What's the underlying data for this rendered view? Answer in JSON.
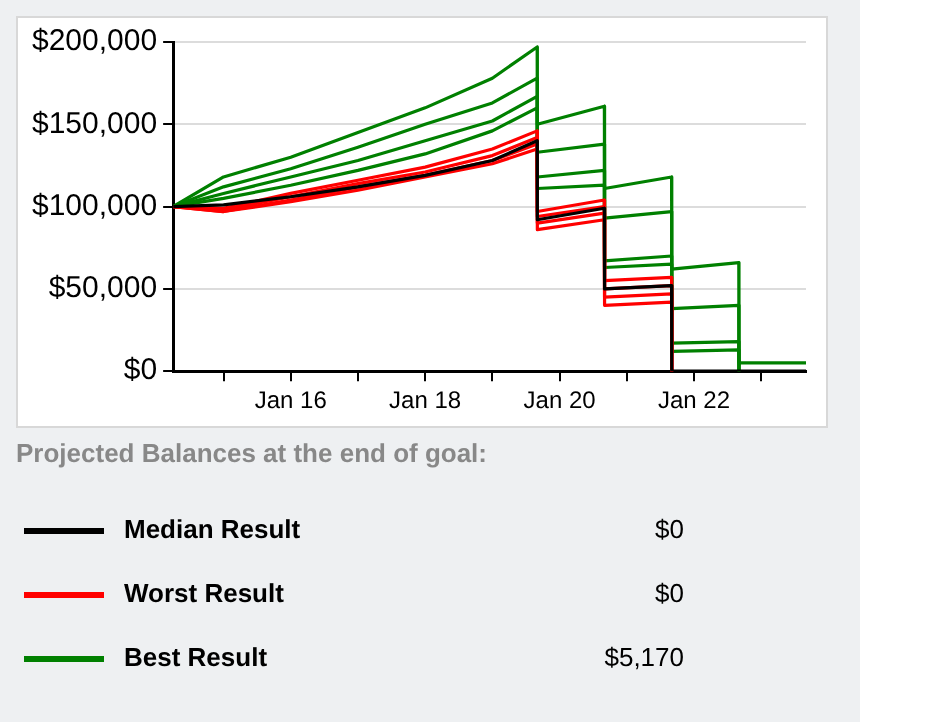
{
  "chart_data": {
    "type": "line",
    "annotations": [
      "Projected Balances at the end of goal:",
      "$0",
      "$0",
      "$5,170"
    ],
    "x": [
      "2014-04-01",
      "2015-01-01",
      "2016-01-01",
      "2017-01-01",
      "2018-01-01",
      "2019-01-01",
      "2019-09-01",
      "2019-09-02",
      "2020-09-01",
      "2020-09-02",
      "2021-09-01",
      "2021-09-02",
      "2022-09-01",
      "2022-09-02",
      "2023-09-01"
    ],
    "series": [
      {
        "name": "Median Result",
        "color": "#000000",
        "values": [
          100000,
          101000,
          106000,
          112000,
          119000,
          128000,
          140000,
          92000,
          99000,
          50000,
          52000,
          0,
          0,
          0,
          0
        ]
      },
      {
        "name": "Worst Result",
        "color": "#ff0000",
        "values": [
          100000,
          97000,
          103000,
          110000,
          118000,
          126000,
          135000,
          86000,
          92000,
          40000,
          42000,
          0,
          null,
          null,
          null
        ]
      },
      {
        "name": "Best Result",
        "color": "#008000",
        "values": [
          100000,
          118000,
          130000,
          145000,
          160000,
          178000,
          197000,
          150000,
          161000,
          111000,
          118000,
          62000,
          66000,
          5000,
          5000
        ]
      },
      {
        "color": "#ff0000",
        "values": [
          100000,
          99000,
          108000,
          116000,
          124000,
          135000,
          146000,
          97000,
          104000,
          55000,
          57000,
          0,
          null,
          null,
          null
        ]
      },
      {
        "color": "#ff0000",
        "values": [
          100000,
          98000,
          106000,
          114000,
          121000,
          131000,
          142000,
          94000,
          100000,
          50000,
          52000,
          0,
          null,
          null,
          null
        ]
      },
      {
        "color": "#ff0000",
        "values": [
          100000,
          97000,
          104000,
          112000,
          119000,
          128000,
          138000,
          90000,
          96000,
          45000,
          47000,
          0,
          null,
          null,
          null
        ]
      },
      {
        "color": "#008000",
        "values": [
          100000,
          112000,
          123000,
          136000,
          150000,
          163000,
          178000,
          133000,
          138000,
          93000,
          97000,
          38000,
          40000,
          0,
          null
        ]
      },
      {
        "color": "#008000",
        "values": [
          100000,
          108000,
          118000,
          128000,
          140000,
          152000,
          167000,
          118000,
          122000,
          67000,
          70000,
          17000,
          18000,
          0,
          null
        ]
      },
      {
        "color": "#008000",
        "values": [
          100000,
          105000,
          113000,
          122000,
          132000,
          146000,
          160000,
          111000,
          113000,
          63000,
          65000,
          12000,
          13000,
          0,
          null
        ]
      }
    ],
    "xlim": [
      "2014-04-01",
      "2023-09-01"
    ],
    "xticks": [
      {
        "value": "2015-01-01",
        "label": null
      },
      {
        "value": "2016-01-01",
        "label": "Jan 16"
      },
      {
        "value": "2017-01-01",
        "label": null
      },
      {
        "value": "2018-01-01",
        "label": "Jan 18"
      },
      {
        "value": "2019-01-01",
        "label": null
      },
      {
        "value": "2020-01-01",
        "label": "Jan 20"
      },
      {
        "value": "2021-01-01",
        "label": null
      },
      {
        "value": "2022-01-01",
        "label": "Jan 22"
      },
      {
        "value": "2023-01-01",
        "label": null
      }
    ],
    "ylim": [
      0,
      200000
    ],
    "yticks": [
      {
        "value": 0,
        "label": "$0"
      },
      {
        "value": 50000,
        "label": "$50,000"
      },
      {
        "value": 100000,
        "label": "$100,000"
      },
      {
        "value": 150000,
        "label": "$150,000"
      },
      {
        "value": 200000,
        "label": "$200,000"
      }
    ],
    "grid": "y",
    "legend": "bottom",
    "marker": "none",
    "line_style": "solid"
  }
}
